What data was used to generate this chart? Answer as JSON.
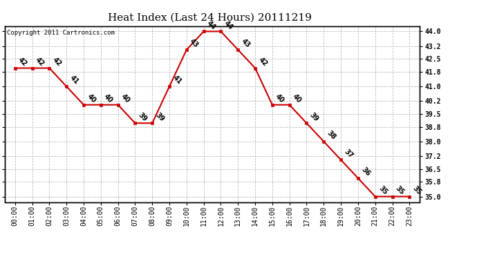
{
  "title": "Heat Index (Last 24 Hours) 20111219",
  "copyright": "Copyright 2011 Cartronics.com",
  "hours": [
    0,
    1,
    2,
    3,
    4,
    5,
    6,
    7,
    8,
    9,
    10,
    11,
    12,
    13,
    14,
    15,
    16,
    17,
    18,
    19,
    20,
    21,
    22,
    23
  ],
  "hour_labels": [
    "00:00",
    "01:00",
    "02:00",
    "03:00",
    "04:00",
    "05:00",
    "06:00",
    "07:00",
    "08:00",
    "09:00",
    "10:00",
    "11:00",
    "12:00",
    "13:00",
    "14:00",
    "15:00",
    "16:00",
    "17:00",
    "18:00",
    "19:00",
    "20:00",
    "21:00",
    "22:00",
    "23:00"
  ],
  "values": [
    42,
    42,
    42,
    41,
    40,
    40,
    40,
    39,
    39,
    41,
    43,
    44,
    44,
    43,
    42,
    40,
    40,
    39,
    38,
    37,
    36,
    35,
    35,
    35
  ],
  "yticks": [
    35.0,
    35.8,
    36.5,
    37.2,
    38.0,
    38.8,
    39.5,
    40.2,
    41.0,
    41.8,
    42.5,
    43.2,
    44.0
  ],
  "ylim": [
    34.7,
    44.3
  ],
  "xlim": [
    -0.6,
    23.6
  ],
  "line_color": "#cc0000",
  "marker_color": "#cc0000",
  "bg_color": "#ffffff",
  "plot_bg_color": "#ffffff",
  "grid_color": "#bbbbbb",
  "title_fontsize": 11,
  "copyright_fontsize": 6.5,
  "label_fontsize": 7,
  "tick_fontsize": 7
}
